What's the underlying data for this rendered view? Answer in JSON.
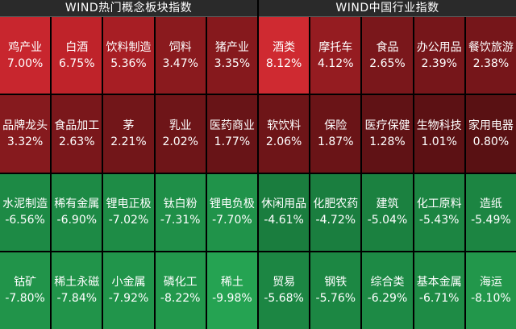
{
  "left_panel": {
    "title": "WIND热门概念板块指数",
    "tiles": [
      {
        "name": "鸡产业",
        "pct": "7.00%",
        "color": "#c8262e"
      },
      {
        "name": "白酒",
        "pct": "6.75%",
        "color": "#bf232a"
      },
      {
        "name": "饮料制造",
        "pct": "5.36%",
        "color": "#a71e24"
      },
      {
        "name": "饲料",
        "pct": "3.47%",
        "color": "#8a1a1e"
      },
      {
        "name": "猪产业",
        "pct": "3.35%",
        "color": "#86191d"
      },
      {
        "name": "品牌龙头",
        "pct": "3.32%",
        "color": "#861a1e"
      },
      {
        "name": "食品加工",
        "pct": "2.63%",
        "color": "#7a171b"
      },
      {
        "name": "茅",
        "pct": "2.21%",
        "color": "#721619"
      },
      {
        "name": "乳业",
        "pct": "2.02%",
        "color": "#6e1518"
      },
      {
        "name": "医药商业",
        "pct": "1.77%",
        "color": "#681417"
      },
      {
        "name": "水泥制造",
        "pct": "-6.56%",
        "color": "#1d8a45"
      },
      {
        "name": "稀有金属",
        "pct": "-6.90%",
        "color": "#1d8a45"
      },
      {
        "name": "锂电正极",
        "pct": "-7.02%",
        "color": "#1e8c46"
      },
      {
        "name": "钛白粉",
        "pct": "-7.31%",
        "color": "#1f8f48"
      },
      {
        "name": "锂电负极",
        "pct": "-7.70%",
        "color": "#20934a"
      },
      {
        "name": "钴矿",
        "pct": "-7.80%",
        "color": "#21944a"
      },
      {
        "name": "稀土永磁",
        "pct": "-7.84%",
        "color": "#21944a"
      },
      {
        "name": "小金属",
        "pct": "-7.92%",
        "color": "#21954b"
      },
      {
        "name": "磷化工",
        "pct": "-8.22%",
        "color": "#22984c"
      },
      {
        "name": "稀土",
        "pct": "-9.98%",
        "color": "#25a352"
      }
    ]
  },
  "right_panel": {
    "title": "WIND中国行业指数",
    "tiles": [
      {
        "name": "酒类",
        "pct": "8.12%",
        "color": "#cf2a31"
      },
      {
        "name": "摩托车",
        "pct": "4.12%",
        "color": "#951c21"
      },
      {
        "name": "食品",
        "pct": "2.65%",
        "color": "#7a171b"
      },
      {
        "name": "办公用品",
        "pct": "2.39%",
        "color": "#76161a"
      },
      {
        "name": "餐饮旅游",
        "pct": "2.38%",
        "color": "#76161a"
      },
      {
        "name": "软饮料",
        "pct": "2.06%",
        "color": "#6e1518"
      },
      {
        "name": "保险",
        "pct": "1.87%",
        "color": "#6a1417"
      },
      {
        "name": "医疗保健",
        "pct": "1.28%",
        "color": "#601215"
      },
      {
        "name": "生物科技",
        "pct": "1.01%",
        "color": "#5c1114"
      },
      {
        "name": "家用电器",
        "pct": "0.80%",
        "color": "#591113"
      },
      {
        "name": "休闲用品",
        "pct": "-4.61%",
        "color": "#1a7d3e"
      },
      {
        "name": "化肥农药",
        "pct": "-4.72%",
        "color": "#1a7e3f"
      },
      {
        "name": "建筑",
        "pct": "-5.04%",
        "color": "#1b8140"
      },
      {
        "name": "化工原料",
        "pct": "-5.43%",
        "color": "#1c8542"
      },
      {
        "name": "造纸",
        "pct": "-5.49%",
        "color": "#1c8542"
      },
      {
        "name": "贸易",
        "pct": "-5.68%",
        "color": "#1c8643"
      },
      {
        "name": "钢铁",
        "pct": "-5.76%",
        "color": "#1c8743"
      },
      {
        "name": "综合类",
        "pct": "-6.29%",
        "color": "#1d8a45"
      },
      {
        "name": "基本金属",
        "pct": "-6.71%",
        "color": "#1e8b45"
      },
      {
        "name": "海运",
        "pct": "-8.10%",
        "color": "#22974b"
      }
    ]
  }
}
